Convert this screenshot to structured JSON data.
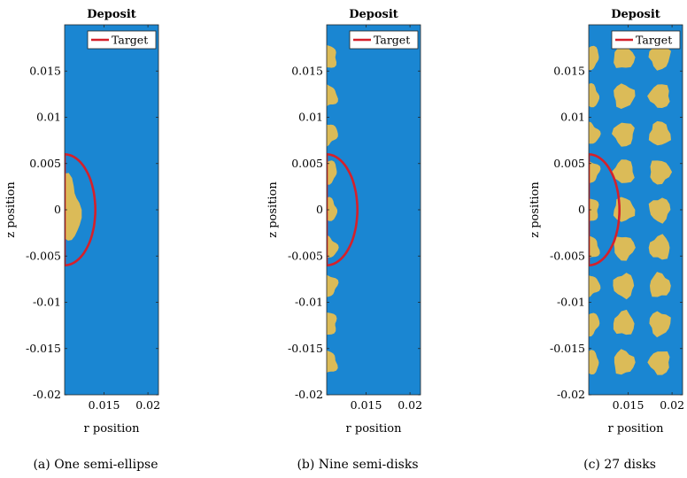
{
  "chart_data": [
    {
      "type": "heatmap",
      "title": "Deposit",
      "xlabel": "r position",
      "ylabel": "z position",
      "xlim": [
        0.0105,
        0.0212
      ],
      "ylim": [
        -0.02,
        0.02
      ],
      "xticks": [
        0.015,
        0.02
      ],
      "xticklabels": [
        "0.015",
        "0.02"
      ],
      "yticks": [
        0.015,
        0.01,
        0.005,
        0,
        -0.005,
        -0.01,
        -0.015,
        -0.02
      ],
      "yticklabels": [
        "0.015",
        "0.01",
        "0.005",
        "0",
        "-0.005",
        "-0.01",
        "-0.015",
        "-0.02"
      ],
      "legend": {
        "entries": [
          "Target"
        ],
        "placement": "top-right"
      },
      "colors": {
        "background": "#1a86d2",
        "deposit": "#dbbb58",
        "target": "#d5202a"
      },
      "target_curve": {
        "name": "Target",
        "shape": "semi-ellipse",
        "r_center": 0.0105,
        "z_center": 0,
        "r_semi_axis": 0.0035,
        "z_semi_axis": 0.006
      },
      "deposits": [
        {
          "shape": "semi-ellipse",
          "r": 0.0105,
          "z": 0,
          "r_radius": 0.0018,
          "z_radius": 0.0035
        }
      ],
      "caption": "(a) One semi-ellipse"
    },
    {
      "type": "heatmap",
      "title": "Deposit",
      "xlabel": "r position",
      "ylabel": "z position",
      "xlim": [
        0.0105,
        0.0212
      ],
      "ylim": [
        -0.02,
        0.02
      ],
      "xticks": [
        0.015,
        0.02
      ],
      "xticklabels": [
        "0.015",
        "0.02"
      ],
      "yticks": [
        0.015,
        0.01,
        0.005,
        0,
        -0.005,
        -0.01,
        -0.015,
        -0.02
      ],
      "yticklabels": [
        "0.015",
        "0.01",
        "0.005",
        "0",
        "-0.005",
        "-0.01",
        "-0.015",
        "-0.02"
      ],
      "legend": {
        "entries": [
          "Target"
        ],
        "placement": "top-right"
      },
      "colors": {
        "background": "#1a86d2",
        "deposit": "#dbbb58",
        "target": "#d5202a"
      },
      "target_curve": {
        "name": "Target",
        "shape": "semi-ellipse",
        "r_center": 0.0105,
        "z_center": 0,
        "r_semi_axis": 0.0035,
        "z_semi_axis": 0.006
      },
      "deposits": [
        {
          "shape": "semi-disk",
          "r": 0.0105,
          "z": 0.0165,
          "r_radius": 0.0012,
          "z_radius": 0.0012
        },
        {
          "shape": "semi-disk",
          "r": 0.0105,
          "z": 0.0123,
          "r_radius": 0.0012,
          "z_radius": 0.0012
        },
        {
          "shape": "semi-disk",
          "r": 0.0105,
          "z": 0.0082,
          "r_radius": 0.0012,
          "z_radius": 0.0012
        },
        {
          "shape": "semi-disk",
          "r": 0.0105,
          "z": 0.0041,
          "r_radius": 0.0012,
          "z_radius": 0.0012
        },
        {
          "shape": "semi-disk",
          "r": 0.0105,
          "z": 0.0,
          "r_radius": 0.0012,
          "z_radius": 0.0012
        },
        {
          "shape": "semi-disk",
          "r": 0.0105,
          "z": -0.0041,
          "r_radius": 0.0012,
          "z_radius": 0.0012
        },
        {
          "shape": "semi-disk",
          "r": 0.0105,
          "z": -0.0082,
          "r_radius": 0.0012,
          "z_radius": 0.0012
        },
        {
          "shape": "semi-disk",
          "r": 0.0105,
          "z": -0.0123,
          "r_radius": 0.0012,
          "z_radius": 0.0012
        },
        {
          "shape": "semi-disk",
          "r": 0.0105,
          "z": -0.0165,
          "r_radius": 0.0012,
          "z_radius": 0.0012
        }
      ],
      "caption": "(b) Nine semi-disks"
    },
    {
      "type": "heatmap",
      "title": "Deposit",
      "xlabel": "r position",
      "ylabel": "z position",
      "xlim": [
        0.0105,
        0.0212
      ],
      "ylim": [
        -0.02,
        0.02
      ],
      "xticks": [
        0.015,
        0.02
      ],
      "xticklabels": [
        "0.015",
        "0.02"
      ],
      "yticks": [
        0.015,
        0.01,
        0.005,
        0,
        -0.005,
        -0.01,
        -0.015,
        -0.02
      ],
      "yticklabels": [
        "0.015",
        "0.01",
        "0.005",
        "0",
        "-0.005",
        "-0.01",
        "-0.015",
        "-0.02"
      ],
      "legend": {
        "entries": [
          "Target"
        ],
        "placement": "top-right"
      },
      "colors": {
        "background": "#1a86d2",
        "deposit": "#dbbb58",
        "target": "#d5202a"
      },
      "target_curve": {
        "name": "Target",
        "shape": "semi-ellipse",
        "r_center": 0.0105,
        "z_center": 0,
        "r_semi_axis": 0.0035,
        "z_semi_axis": 0.006
      },
      "deposits": [
        {
          "shape": "semi-disk",
          "r": 0.0105,
          "z": 0.0165,
          "r_radius": 0.0012,
          "z_radius": 0.0012
        },
        {
          "shape": "semi-disk",
          "r": 0.0105,
          "z": 0.0123,
          "r_radius": 0.0012,
          "z_radius": 0.0012
        },
        {
          "shape": "semi-disk",
          "r": 0.0105,
          "z": 0.0082,
          "r_radius": 0.0012,
          "z_radius": 0.0012
        },
        {
          "shape": "semi-disk",
          "r": 0.0105,
          "z": 0.0041,
          "r_radius": 0.0012,
          "z_radius": 0.0012
        },
        {
          "shape": "semi-disk",
          "r": 0.0105,
          "z": 0.0,
          "r_radius": 0.0012,
          "z_radius": 0.0012
        },
        {
          "shape": "semi-disk",
          "r": 0.0105,
          "z": -0.0041,
          "r_radius": 0.0012,
          "z_radius": 0.0012
        },
        {
          "shape": "semi-disk",
          "r": 0.0105,
          "z": -0.0082,
          "r_radius": 0.0012,
          "z_radius": 0.0012
        },
        {
          "shape": "semi-disk",
          "r": 0.0105,
          "z": -0.0123,
          "r_radius": 0.0012,
          "z_radius": 0.0012
        },
        {
          "shape": "semi-disk",
          "r": 0.0105,
          "z": -0.0165,
          "r_radius": 0.0012,
          "z_radius": 0.0012
        },
        {
          "shape": "disk",
          "r": 0.0145,
          "z": 0.0165,
          "r_radius": 0.0012,
          "z_radius": 0.0013
        },
        {
          "shape": "disk",
          "r": 0.0145,
          "z": 0.0123,
          "r_radius": 0.0012,
          "z_radius": 0.0013
        },
        {
          "shape": "disk",
          "r": 0.0145,
          "z": 0.0082,
          "r_radius": 0.0012,
          "z_radius": 0.0013
        },
        {
          "shape": "disk",
          "r": 0.0145,
          "z": 0.0041,
          "r_radius": 0.0012,
          "z_radius": 0.0013
        },
        {
          "shape": "disk",
          "r": 0.0145,
          "z": 0.0,
          "r_radius": 0.0012,
          "z_radius": 0.0013
        },
        {
          "shape": "disk",
          "r": 0.0145,
          "z": -0.0041,
          "r_radius": 0.0012,
          "z_radius": 0.0013
        },
        {
          "shape": "disk",
          "r": 0.0145,
          "z": -0.0082,
          "r_radius": 0.0012,
          "z_radius": 0.0013
        },
        {
          "shape": "disk",
          "r": 0.0145,
          "z": -0.0123,
          "r_radius": 0.0012,
          "z_radius": 0.0013
        },
        {
          "shape": "disk",
          "r": 0.0145,
          "z": -0.0165,
          "r_radius": 0.0012,
          "z_radius": 0.0013
        },
        {
          "shape": "disk",
          "r": 0.0186,
          "z": 0.0165,
          "r_radius": 0.0012,
          "z_radius": 0.0013
        },
        {
          "shape": "disk",
          "r": 0.0186,
          "z": 0.0123,
          "r_radius": 0.0012,
          "z_radius": 0.0013
        },
        {
          "shape": "disk",
          "r": 0.0186,
          "z": 0.0082,
          "r_radius": 0.0012,
          "z_radius": 0.0013
        },
        {
          "shape": "disk",
          "r": 0.0186,
          "z": 0.0041,
          "r_radius": 0.0012,
          "z_radius": 0.0013
        },
        {
          "shape": "disk",
          "r": 0.0186,
          "z": 0.0,
          "r_radius": 0.0012,
          "z_radius": 0.0013
        },
        {
          "shape": "disk",
          "r": 0.0186,
          "z": -0.0041,
          "r_radius": 0.0012,
          "z_radius": 0.0013
        },
        {
          "shape": "disk",
          "r": 0.0186,
          "z": -0.0082,
          "r_radius": 0.0012,
          "z_radius": 0.0013
        },
        {
          "shape": "disk",
          "r": 0.0186,
          "z": -0.0123,
          "r_radius": 0.0012,
          "z_radius": 0.0013
        },
        {
          "shape": "disk",
          "r": 0.0186,
          "z": -0.0165,
          "r_radius": 0.0012,
          "z_radius": 0.0013
        }
      ],
      "caption": "(c) 27 disks"
    }
  ]
}
